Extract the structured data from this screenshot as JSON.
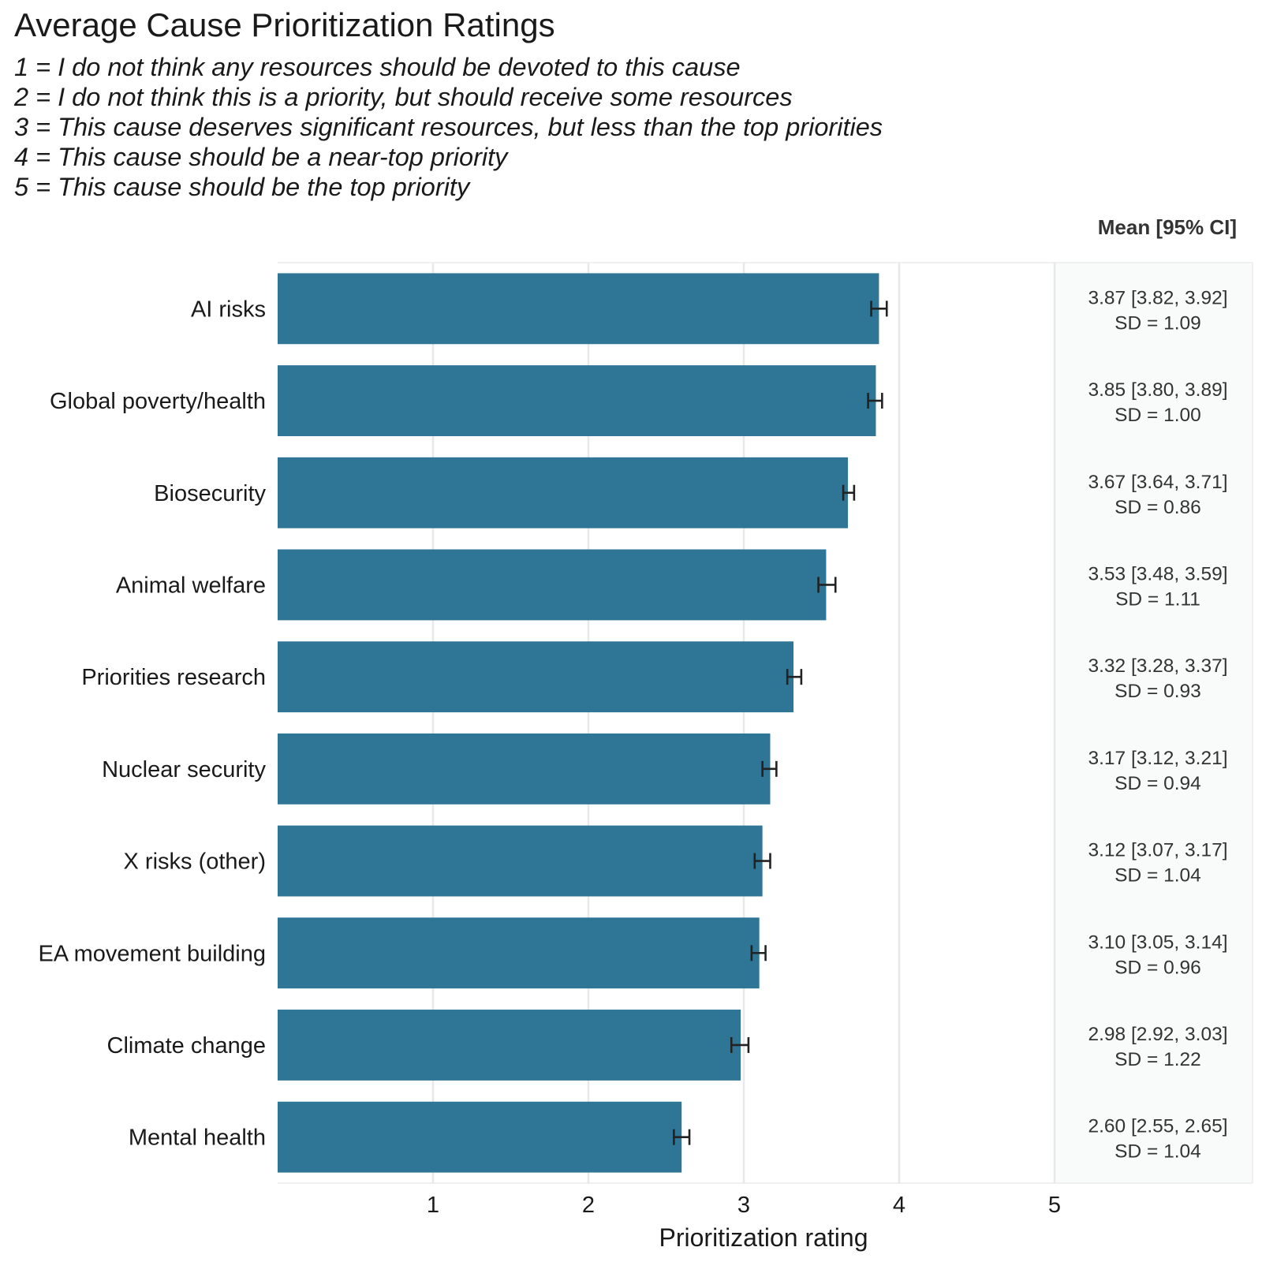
{
  "chart_data": {
    "type": "bar",
    "orientation": "horizontal",
    "title": "Average Cause Prioritization Ratings",
    "subtitle_lines": [
      "1 = I do not think any resources should be devoted to this cause",
      "2 = I do not think this is a priority, but should receive some resources",
      "3 = This cause deserves significant resources, but less than the top priorities",
      "4 = This cause should be a near-top priority",
      "5 = This cause should be the top priority"
    ],
    "xlabel": "Prioritization rating",
    "xlim": [
      0,
      6.25
    ],
    "xticks": [
      1,
      2,
      3,
      4,
      5
    ],
    "grid": true,
    "stats_header": "Mean [95% CI]",
    "bar_color": "#2e7596",
    "categories": [
      "AI risks",
      "Global poverty/health",
      "Biosecurity",
      "Animal welfare",
      "Priorities research",
      "Nuclear security",
      "X risks (other)",
      "EA movement building",
      "Climate change",
      "Mental health"
    ],
    "values": [
      3.87,
      3.85,
      3.67,
      3.53,
      3.32,
      3.17,
      3.12,
      3.1,
      2.98,
      2.6
    ],
    "ci_low": [
      3.82,
      3.8,
      3.64,
      3.48,
      3.28,
      3.12,
      3.07,
      3.05,
      2.92,
      2.55
    ],
    "ci_high": [
      3.92,
      3.89,
      3.71,
      3.59,
      3.37,
      3.21,
      3.17,
      3.14,
      3.03,
      2.65
    ],
    "stat_labels": [
      "3.87 [3.82, 3.92]",
      "3.85 [3.80, 3.89]",
      "3.67 [3.64, 3.71]",
      "3.53 [3.48, 3.59]",
      "3.32 [3.28, 3.37]",
      "3.17 [3.12, 3.21]",
      "3.12 [3.07, 3.17]",
      "3.10 [3.05, 3.14]",
      "2.98 [2.92, 3.03]",
      "2.60 [2.55, 2.65]"
    ],
    "sd_labels": [
      "SD = 1.09",
      "SD = 1.00",
      "SD = 0.86",
      "SD = 1.11",
      "SD = 0.93",
      "SD = 0.94",
      "SD = 1.04",
      "SD = 0.96",
      "SD = 1.22",
      "SD = 1.04"
    ]
  }
}
